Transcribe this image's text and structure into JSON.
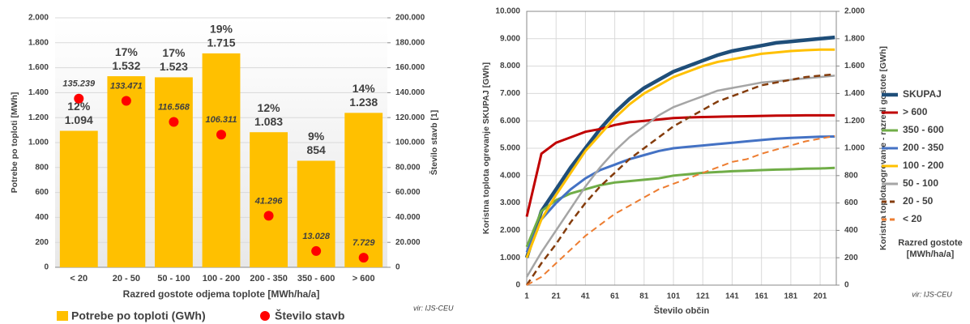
{
  "chart_data": [
    {
      "type": "bar",
      "categories": [
        "< 20",
        "20 - 50",
        "50 - 100",
        "100 - 200",
        "200 - 350",
        "350 - 600",
        "> 600"
      ],
      "series": [
        {
          "name": "Potrebe po toploti (GWh)",
          "color": "#ffc000",
          "values": [
            1094,
            1532,
            1523,
            1715,
            1083,
            854,
            1238
          ],
          "value_labels": [
            "1.094",
            "1.532",
            "1.523",
            "1.715",
            "1.083",
            "854",
            "1.238"
          ]
        },
        {
          "name": "Število stavb",
          "color": "#ff0000",
          "axis": "y2",
          "values": [
            135239,
            133471,
            116568,
            106311,
            41296,
            13028,
            7729
          ],
          "value_labels": [
            "135.239",
            "133.471",
            "116.568",
            "106.311",
            "41.296",
            "13.028",
            "7.729"
          ]
        }
      ],
      "shares": [
        12,
        17,
        17,
        19,
        12,
        9,
        14
      ],
      "share_labels": [
        "12%",
        "17%",
        "17%",
        "19%",
        "12%",
        "9%",
        "14%"
      ],
      "xlabel": "Razred gostote odjema toplote [MWh/ha/a]",
      "ylabel": "Potrebe po toploti [MWh]",
      "y2label": "Število stavb [1]",
      "ylim": [
        0,
        2000
      ],
      "yticks": [
        0,
        200,
        400,
        600,
        800,
        {
          "value": 1000,
          "label": "1.000"
        },
        {
          "value": 1200,
          "label": "1.200"
        },
        {
          "value": 1400,
          "label": "1.400"
        },
        {
          "value": 1600,
          "label": "1.600"
        },
        {
          "value": 1800,
          "label": "1.800"
        },
        {
          "value": 2000,
          "label": "2.000"
        }
      ],
      "y2lim": [
        0,
        200000
      ],
      "y2ticks": [
        0,
        {
          "value": 20000,
          "label": "20.000"
        },
        {
          "value": 40000,
          "label": "40.000"
        },
        {
          "value": 60000,
          "label": "60.000"
        },
        {
          "value": 80000,
          "label": "80.000"
        },
        {
          "value": 100000,
          "label": "100.000"
        },
        {
          "value": 120000,
          "label": "120.000"
        },
        {
          "value": 140000,
          "label": "140.000"
        },
        {
          "value": 160000,
          "label": "160.000"
        },
        {
          "value": 180000,
          "label": "180.000"
        },
        {
          "value": 200000,
          "label": "200.000"
        }
      ],
      "grid": true,
      "legend": "bottom",
      "source": "vir: IJS-CEU"
    },
    {
      "type": "line",
      "x": [
        1,
        11,
        21,
        31,
        41,
        51,
        61,
        71,
        81,
        91,
        101,
        111,
        121,
        131,
        141,
        151,
        161,
        171,
        181,
        191,
        201,
        211
      ],
      "series": [
        {
          "name": "SKUPAJ",
          "color": "#1f4e79",
          "width": 4.5,
          "values": [
            1000,
            2700,
            3500,
            4300,
            5000,
            5700,
            6300,
            6800,
            7200,
            7500,
            7800,
            8000,
            8200,
            8400,
            8550,
            8650,
            8750,
            8850,
            8900,
            8950,
            9000,
            9050
          ]
        },
        {
          "name": "> 600",
          "color": "#c00000",
          "axis": "y2",
          "width": 3,
          "values": [
            500,
            960,
            1040,
            1080,
            1120,
            1140,
            1170,
            1190,
            1200,
            1210,
            1220,
            1225,
            1228,
            1230,
            1232,
            1234,
            1236,
            1238,
            1239,
            1240,
            1240,
            1240
          ]
        },
        {
          "name": "350 - 600",
          "color": "#70ad47",
          "axis": "y2",
          "width": 3,
          "values": [
            280,
            540,
            620,
            670,
            700,
            730,
            750,
            760,
            770,
            780,
            800,
            810,
            820,
            826,
            832,
            836,
            840,
            844,
            846,
            850,
            852,
            856
          ]
        },
        {
          "name": "200 - 350",
          "color": "#4472c4",
          "axis": "y2",
          "width": 3,
          "values": [
            240,
            480,
            600,
            700,
            780,
            840,
            880,
            920,
            950,
            980,
            1000,
            1010,
            1020,
            1030,
            1040,
            1050,
            1060,
            1070,
            1076,
            1080,
            1084,
            1086
          ]
        },
        {
          "name": "100 - 200",
          "color": "#ffc000",
          "axis": "y2",
          "width": 3,
          "values": [
            200,
            480,
            660,
            820,
            980,
            1100,
            1220,
            1320,
            1400,
            1460,
            1520,
            1560,
            1600,
            1630,
            1650,
            1670,
            1690,
            1700,
            1710,
            1716,
            1720,
            1720
          ]
        },
        {
          "name": "50 - 100",
          "color": "#a5a5a5",
          "axis": "y2",
          "width": 2.5,
          "values": [
            60,
            240,
            400,
            560,
            720,
            860,
            980,
            1080,
            1160,
            1240,
            1300,
            1340,
            1380,
            1420,
            1440,
            1460,
            1480,
            1490,
            1500,
            1510,
            1520,
            1530
          ]
        },
        {
          "name": "20 - 50",
          "color": "#843c0c",
          "axis": "y2",
          "width": 2.5,
          "dashed": true,
          "values": [
            0,
            160,
            300,
            460,
            600,
            720,
            820,
            920,
            1000,
            1080,
            1160,
            1220,
            1280,
            1340,
            1380,
            1420,
            1460,
            1480,
            1500,
            1520,
            1530,
            1540
          ]
        },
        {
          "name": "< 20",
          "color": "#ed7d31",
          "axis": "y2",
          "width": 2,
          "dashed": true,
          "values": [
            0,
            60,
            160,
            260,
            360,
            440,
            520,
            580,
            640,
            700,
            740,
            780,
            820,
            860,
            900,
            920,
            960,
            990,
            1020,
            1050,
            1070,
            1090
          ]
        }
      ],
      "xlabel": "Število občin",
      "ylabel": "Koristna toplota ogrevanje SKUPAJ [GWh]",
      "y2label": "Koristna toplota ogrevanje - razredi gostote [GWh]",
      "xlim": [
        1,
        212
      ],
      "xticks": [
        1,
        21,
        41,
        61,
        81,
        101,
        121,
        141,
        161,
        181,
        201
      ],
      "ylim": [
        0,
        10000
      ],
      "yticks": [
        0,
        {
          "value": 1000,
          "label": "1.000"
        },
        {
          "value": 2000,
          "label": "2.000"
        },
        {
          "value": 3000,
          "label": "3.000"
        },
        {
          "value": 4000,
          "label": "4.000"
        },
        {
          "value": 5000,
          "label": "5.000"
        },
        {
          "value": 6000,
          "label": "6.000"
        },
        {
          "value": 7000,
          "label": "7.000"
        },
        {
          "value": 8000,
          "label": "8.000"
        },
        {
          "value": 9000,
          "label": "9.000"
        },
        {
          "value": 10000,
          "label": "10.000"
        }
      ],
      "y2lim": [
        0,
        2000
      ],
      "y2ticks": [
        0,
        200,
        400,
        600,
        800,
        {
          "value": 1000,
          "label": "1.000"
        },
        {
          "value": 1200,
          "label": "1.200"
        },
        {
          "value": 1400,
          "label": "1.400"
        },
        {
          "value": 1600,
          "label": "1.600"
        },
        {
          "value": 1800,
          "label": "1.800"
        },
        {
          "value": 2000,
          "label": "2.000"
        }
      ],
      "grid": true,
      "legend": "right",
      "legend_title": "Razred gostote [MWh/ha/a]",
      "source": "vir: IJS-CEU"
    }
  ]
}
